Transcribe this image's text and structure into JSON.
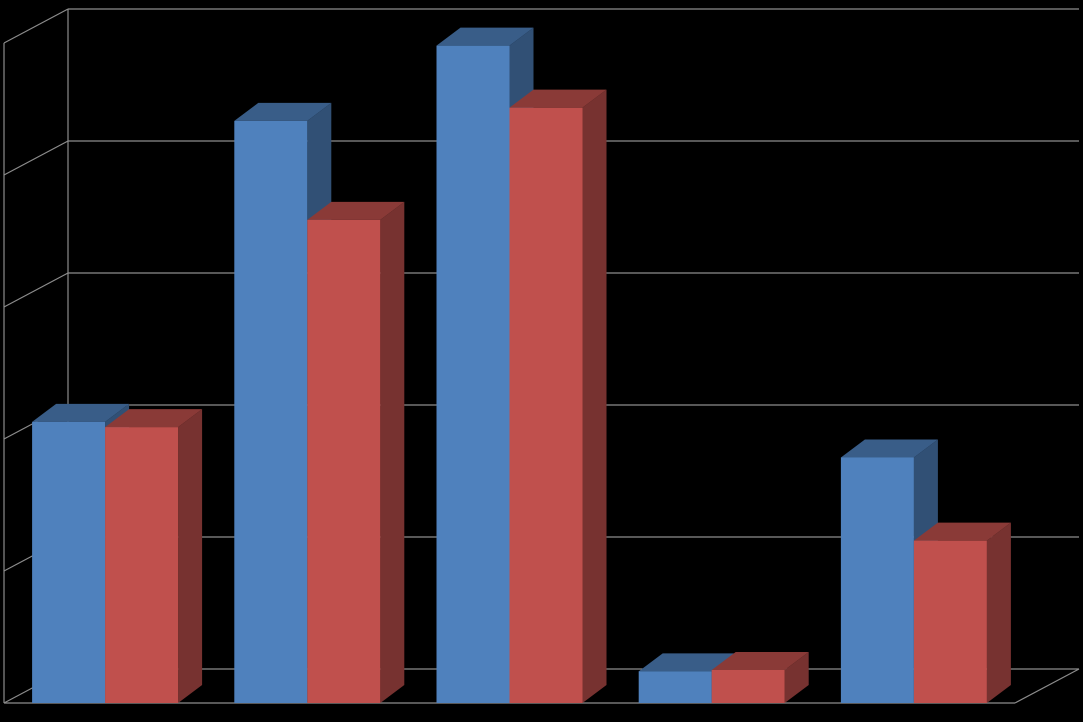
{
  "chart_data": {
    "type": "bar",
    "three_d": true,
    "title": "",
    "xlabel": "",
    "ylabel": "",
    "categories": [
      "",
      "",
      "",
      "",
      ""
    ],
    "series": [
      {
        "color": "#4F81BD",
        "values": [
          2.13,
          4.41,
          4.98,
          0.24,
          1.86
        ]
      },
      {
        "color": "#C0504D",
        "values": [
          2.09,
          3.66,
          4.51,
          0.25,
          1.23
        ]
      }
    ],
    "ylim": [
      0,
      5
    ],
    "yticks": [
      0,
      1,
      2,
      3,
      4,
      5
    ],
    "grid": true,
    "legend": "none",
    "background": "#000000",
    "gridline_color": "#8C8C8C"
  }
}
